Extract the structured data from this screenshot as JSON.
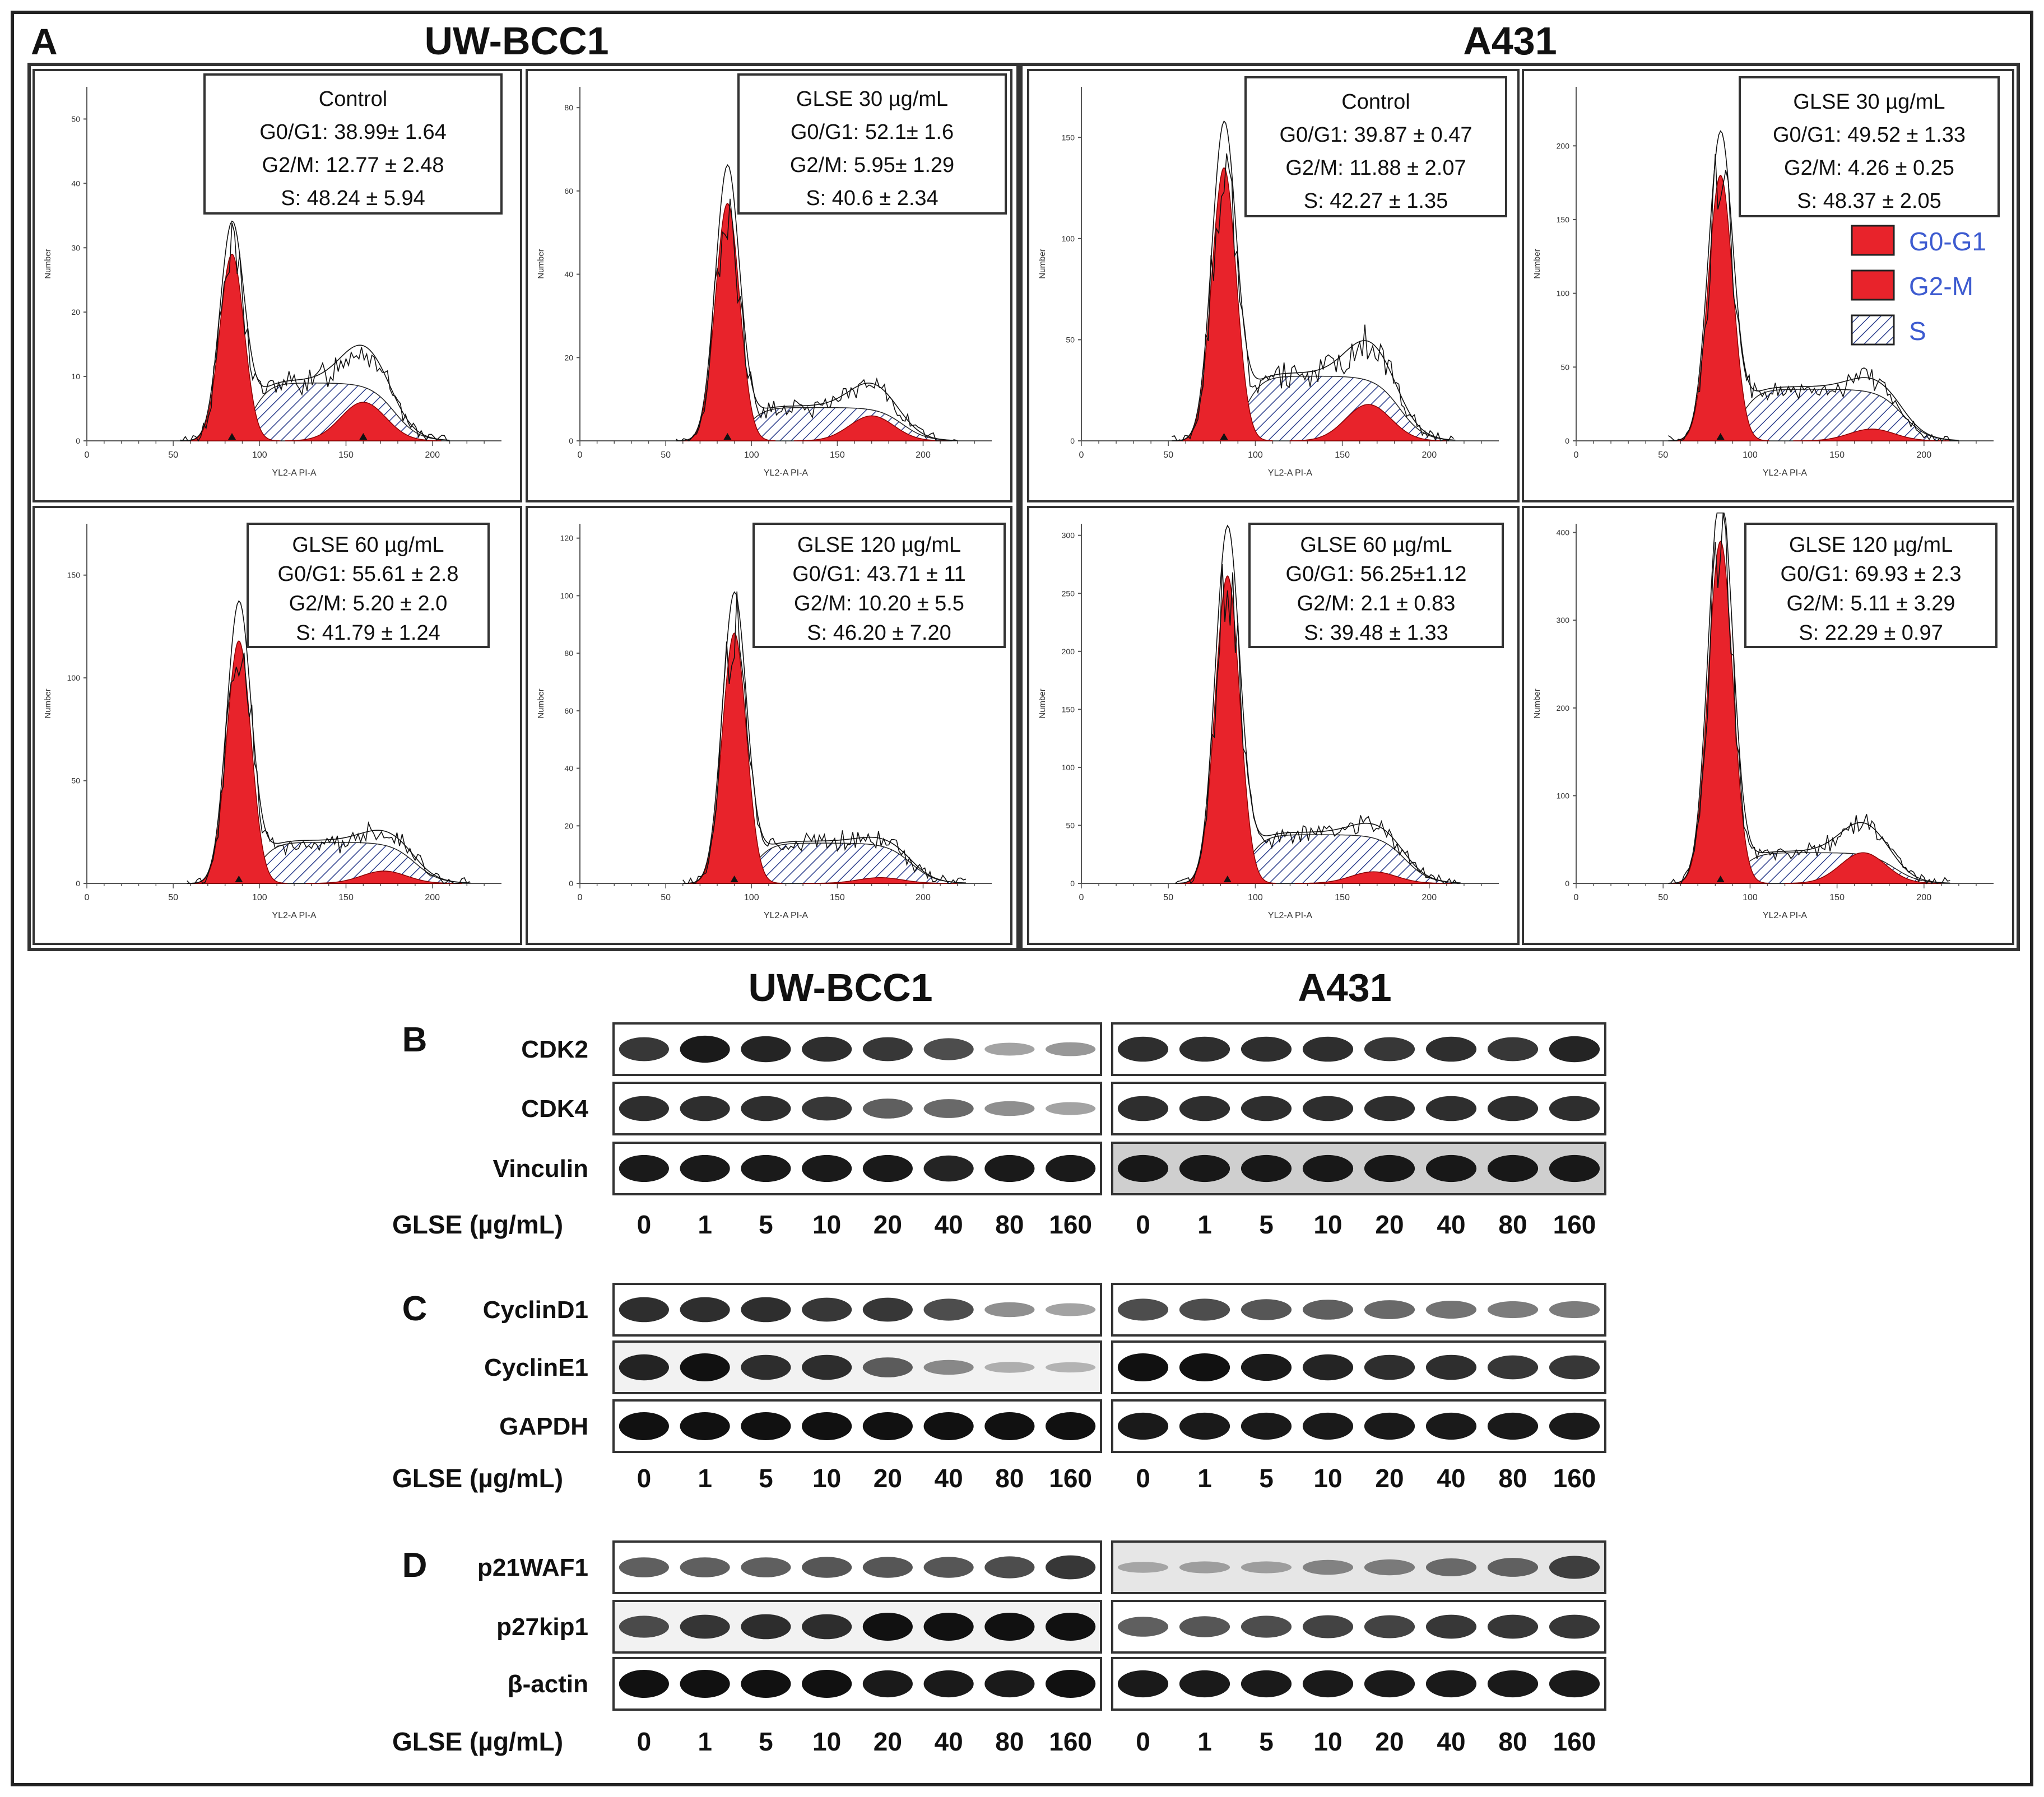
{
  "panel_a": {
    "letter": "A",
    "groups": [
      "UW-BCC1",
      "A431"
    ],
    "x_axis_label": "YL2-A PI-A",
    "y_axis_label": "Number",
    "x_ticks": [
      "0",
      "50",
      "100",
      "150",
      "200"
    ],
    "legend": [
      {
        "label": "G0-G1",
        "color": "#e8232b",
        "pattern": "solid"
      },
      {
        "label": "G2-M",
        "color": "#e8232b",
        "pattern": "solid"
      },
      {
        "label": "S",
        "color": "#2c3e8c",
        "pattern": "hatch"
      }
    ],
    "legend_text_color": "#3d5bd0"
  },
  "chart_data": [
    {
      "type": "area",
      "cell_line": "UW-BCC1",
      "condition": "Control",
      "y_ticks": [
        "0",
        "10",
        "20",
        "30",
        "40",
        "50"
      ],
      "ylim": [
        0,
        55
      ],
      "g1_peak": 84,
      "g2_peak": 160,
      "g1_height": 29,
      "g2_height": 6,
      "s_height": 9,
      "lines": [
        "Control",
        "G0/G1:  38.99± 1.64",
        "G2/M: 12.77 ± 2.48",
        "S: 48.24  ± 5.94"
      ]
    },
    {
      "type": "area",
      "cell_line": "UW-BCC1",
      "condition": "GLSE 30 µg/mL",
      "y_ticks": [
        "0",
        "20",
        "40",
        "60",
        "80"
      ],
      "ylim": [
        0,
        85
      ],
      "g1_peak": 86,
      "g2_peak": 170,
      "g1_height": 57,
      "g2_height": 6,
      "s_height": 8,
      "lines": [
        "GLSE  30 µg/mL",
        "G0/G1:  52.1± 1.6",
        "G2/M:  5.95± 1.29",
        "S:  40.6 ± 2.34"
      ]
    },
    {
      "type": "area",
      "cell_line": "UW-BCC1",
      "condition": "GLSE 60 µg/mL",
      "y_ticks": [
        "0",
        "50",
        "100",
        "150"
      ],
      "ylim": [
        0,
        175
      ],
      "g1_peak": 88,
      "g2_peak": 172,
      "g1_height": 118,
      "g2_height": 6,
      "s_height": 20,
      "lines": [
        "GLSE  60 µg/mL",
        "G0/G1:  55.61 ± 2.8",
        "G2/M:  5.20 ± 2.0",
        "S:  41.79 ± 1.24"
      ]
    },
    {
      "type": "area",
      "cell_line": "UW-BCC1",
      "condition": "GLSE 120 µg/mL",
      "y_ticks": [
        "0",
        "20",
        "40",
        "60",
        "80",
        "100",
        "120"
      ],
      "ylim": [
        0,
        125
      ],
      "g1_peak": 90,
      "g2_peak": 175,
      "g1_height": 87,
      "g2_height": 2,
      "s_height": 14,
      "lines": [
        "GLSE  120 µg/mL",
        "G0/G1:  43.71 ± 11",
        "G2/M:  10.20 ± 5.5",
        "S:  46.20 ± 7.20"
      ]
    },
    {
      "type": "area",
      "cell_line": "A431",
      "condition": "Control",
      "y_ticks": [
        "0",
        "50",
        "100",
        "150"
      ],
      "ylim": [
        0,
        175
      ],
      "g1_peak": 82,
      "g2_peak": 165,
      "g1_height": 135,
      "g2_height": 18,
      "s_height": 32,
      "lines": [
        "Control",
        "G0/G1:  39.87 ± 0.47",
        "G2/M:  11.88 ± 2.07",
        "S:  42.27  ± 1.35"
      ]
    },
    {
      "type": "area",
      "cell_line": "A431",
      "condition": "GLSE 30 µg/mL",
      "y_ticks": [
        "0",
        "50",
        "100",
        "150",
        "200"
      ],
      "ylim": [
        0,
        240
      ],
      "g1_peak": 83,
      "g2_peak": 170,
      "g1_height": 180,
      "g2_height": 8,
      "s_height": 35,
      "lines": [
        "GLSE  30 µg/mL",
        "G0/G1:  49.52 ± 1.33",
        "G2/M:  4.26  ± 0.25",
        "S:  48.37 ± 2.05"
      ]
    },
    {
      "type": "area",
      "cell_line": "A431",
      "condition": "GLSE 60 µg/mL",
      "y_ticks": [
        "0",
        "50",
        "100",
        "150",
        "200",
        "250",
        "300"
      ],
      "ylim": [
        0,
        310
      ],
      "g1_peak": 84,
      "g2_peak": 168,
      "g1_height": 265,
      "g2_height": 10,
      "s_height": 42,
      "lines": [
        "GLSE  60 µg/mL",
        "G0/G1:  56.25±1.12",
        "G2/M:  2.1 ± 0.83",
        "S:  39.48  ± 1.33"
      ]
    },
    {
      "type": "area",
      "cell_line": "A431",
      "condition": "GLSE 120 µg/mL",
      "y_ticks": [
        "0",
        "100",
        "200",
        "300",
        "400"
      ],
      "ylim": [
        0,
        410
      ],
      "g1_peak": 83,
      "g2_peak": 165,
      "g1_height": 390,
      "g2_height": 35,
      "s_height": 35,
      "lines": [
        "GLSE  120 µg/mL",
        "G0/G1:  69.93 ± 2.3",
        "G2/M:  5.11 ± 3.29",
        "S:  22.29 ± 0.97"
      ]
    }
  ],
  "blots": {
    "groups": [
      "UW-BCC1",
      "A431"
    ],
    "dose_label": "GLSE (µg/mL)",
    "doses": [
      "0",
      "1",
      "5",
      "10",
      "20",
      "40",
      "80",
      "160"
    ],
    "panels": [
      {
        "letter": "B",
        "rows": [
          {
            "label": "CDK2",
            "uw": [
              0.8,
              0.95,
              0.9,
              0.85,
              0.8,
              0.7,
              0.25,
              0.3
            ],
            "a431": [
              0.85,
              0.85,
              0.85,
              0.85,
              0.8,
              0.85,
              0.8,
              0.9
            ]
          },
          {
            "label": "CDK4",
            "uw": [
              0.85,
              0.85,
              0.85,
              0.8,
              0.6,
              0.55,
              0.35,
              0.25
            ],
            "a431": [
              0.85,
              0.85,
              0.85,
              0.85,
              0.85,
              0.85,
              0.85,
              0.85
            ]
          },
          {
            "label": "Vinculin",
            "uw": [
              0.95,
              0.95,
              0.95,
              0.95,
              0.95,
              0.9,
              0.95,
              0.95
            ],
            "a431": [
              0.95,
              0.95,
              0.95,
              0.95,
              0.95,
              0.95,
              0.95,
              0.95
            ]
          }
        ]
      },
      {
        "letter": "C",
        "rows": [
          {
            "label": "CyclinD1",
            "uw": [
              0.85,
              0.85,
              0.85,
              0.8,
              0.8,
              0.7,
              0.35,
              0.25
            ],
            "a431": [
              0.7,
              0.7,
              0.65,
              0.6,
              0.55,
              0.5,
              0.45,
              0.45
            ]
          },
          {
            "label": "CyclinE1",
            "uw": [
              0.9,
              1.0,
              0.85,
              0.85,
              0.6,
              0.35,
              0.15,
              0.12
            ],
            "a431": [
              1.0,
              1.0,
              0.95,
              0.9,
              0.85,
              0.85,
              0.8,
              0.8
            ]
          },
          {
            "label": "GAPDH",
            "uw": [
              1.0,
              1.0,
              1.0,
              1.0,
              1.0,
              1.0,
              1.0,
              1.0
            ],
            "a431": [
              0.95,
              0.95,
              0.95,
              0.95,
              0.95,
              0.95,
              0.95,
              0.95
            ]
          }
        ]
      },
      {
        "letter": "D",
        "rows": [
          {
            "label": "p21WAF1",
            "uw": [
              0.6,
              0.6,
              0.6,
              0.65,
              0.65,
              0.65,
              0.7,
              0.8
            ],
            "a431": [
              0.15,
              0.2,
              0.2,
              0.35,
              0.4,
              0.5,
              0.55,
              0.75
            ]
          },
          {
            "label": "p27kip1",
            "uw": [
              0.7,
              0.8,
              0.85,
              0.85,
              1.0,
              1.0,
              1.0,
              1.0
            ],
            "a431": [
              0.6,
              0.65,
              0.7,
              0.75,
              0.75,
              0.8,
              0.8,
              0.8
            ]
          },
          {
            "label": "β-actin",
            "uw": [
              1.0,
              1.0,
              1.0,
              1.0,
              0.95,
              0.95,
              0.95,
              1.0
            ],
            "a431": [
              0.95,
              0.95,
              0.95,
              0.95,
              0.95,
              0.95,
              0.95,
              0.95
            ]
          }
        ]
      }
    ]
  }
}
